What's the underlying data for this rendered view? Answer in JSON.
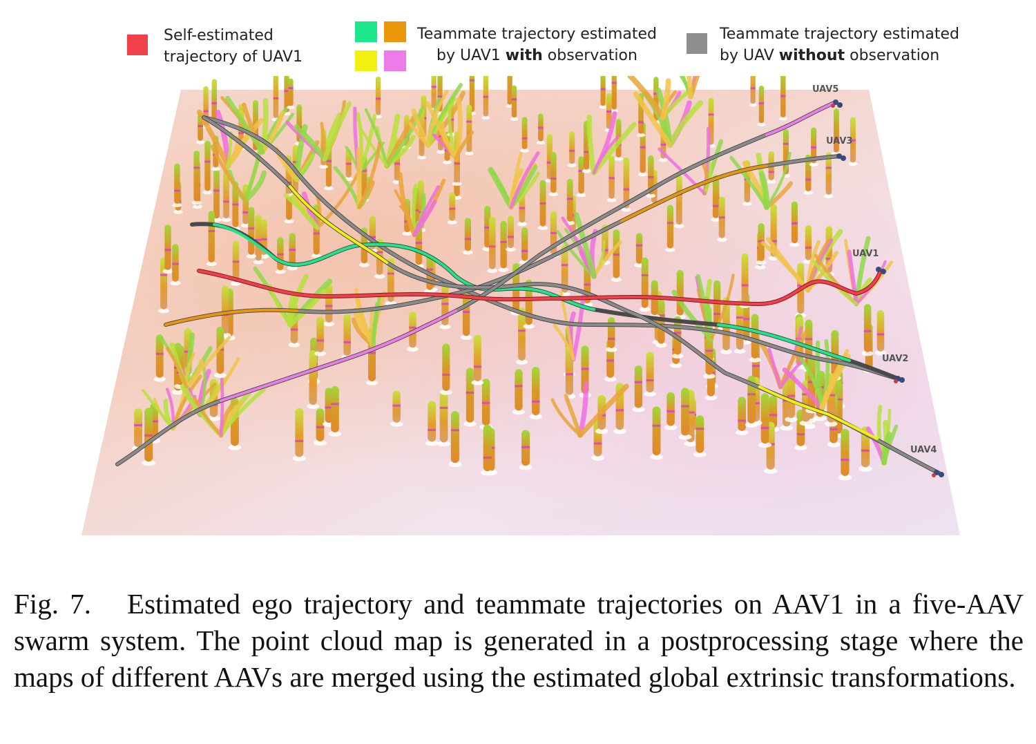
{
  "legend": {
    "self": {
      "line1": "Self-estimated",
      "line2": "trajectory of UAV1",
      "color": "#f0404a"
    },
    "with_obs": {
      "line1": "Teammate trajectory estimated",
      "line2_pre": "by UAV1 ",
      "line2_bold": "with",
      "line2_post": " observation",
      "colors": [
        "#1ee68a",
        "#e8960a",
        "#f2ef12",
        "#ee7ce8"
      ]
    },
    "without_obs": {
      "line1": "Teammate trajectory estimated",
      "line2_pre": "by UAV ",
      "line2_bold": "without",
      "line2_post": " observation",
      "color": "#8e8e8e"
    }
  },
  "uav_labels": {
    "uav5": "UAV5",
    "uav3": "UAV3",
    "uav1": "UAV1",
    "uav2": "UAV2",
    "uav4": "UAV4"
  },
  "caption": {
    "fig_num": "Fig. 7.",
    "text": "Estimated ego trajectory and teammate trajectories on AAV1 in a five-AAV swarm system. The point cloud map is generated in a postprocessing stage where the maps of different AAVs are merged using the estimated global extrinsic transformations."
  }
}
